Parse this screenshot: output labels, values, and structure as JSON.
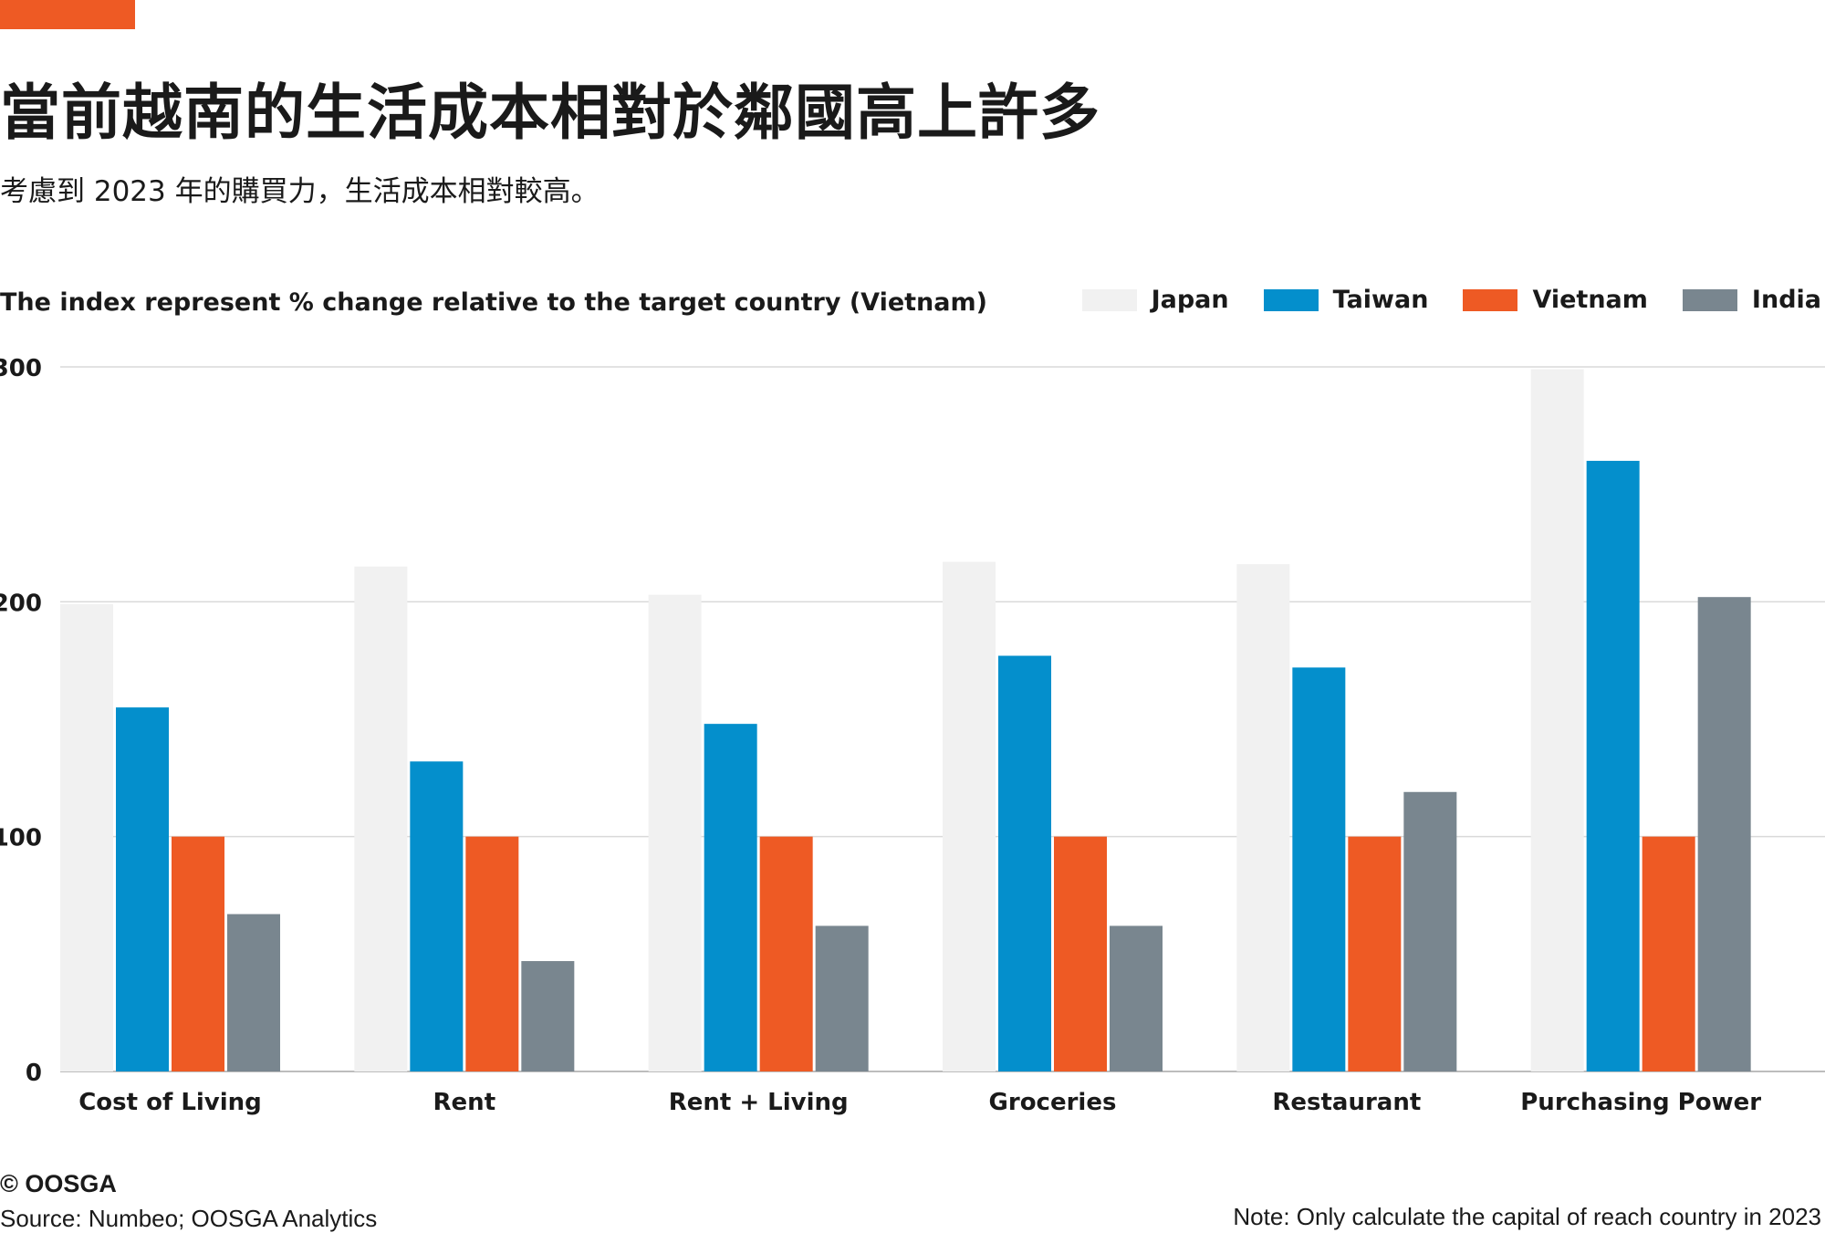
{
  "header": {
    "title": "當前越南的生活成本相對於鄰國高上許多",
    "subtitle": "考慮到 2023 年的購買力，生活成本相對較高。"
  },
  "colors": {
    "accent": "#ee5a24",
    "japan": "#f1f1f1",
    "taiwan": "#048fcc",
    "vietnam": "#ee5a24",
    "india": "#79868f",
    "grid": "#d9d9d9",
    "axis": "#bdbdbd"
  },
  "chart_data": {
    "type": "bar",
    "title": "The index represent % change relative to the target country (Vietnam)",
    "xlabel": "",
    "ylabel": "",
    "ylim": [
      0,
      300
    ],
    "yticks": [
      0,
      100,
      200,
      300
    ],
    "grid": true,
    "legend_position": "top-right",
    "categories": [
      "Cost of Living",
      "Rent",
      "Rent + Living",
      "Groceries",
      "Restaurant",
      "Purchasing Power"
    ],
    "series": [
      {
        "name": "Japan",
        "color": "#f1f1f1",
        "values": [
          199,
          215,
          203,
          217,
          216,
          299
        ]
      },
      {
        "name": "Taiwan",
        "color": "#048fcc",
        "values": [
          155,
          132,
          148,
          177,
          172,
          260
        ]
      },
      {
        "name": "Vietnam",
        "color": "#ee5a24",
        "values": [
          100,
          100,
          100,
          100,
          100,
          100
        ]
      },
      {
        "name": "India",
        "color": "#79868f",
        "values": [
          67,
          47,
          62,
          62,
          119,
          202
        ]
      }
    ]
  },
  "footer": {
    "copyright": "© OOSGA",
    "source": "Source: Numbeo; OOSGA Analytics",
    "note": "Note:  Only calculate the capital of reach country in 2023"
  }
}
